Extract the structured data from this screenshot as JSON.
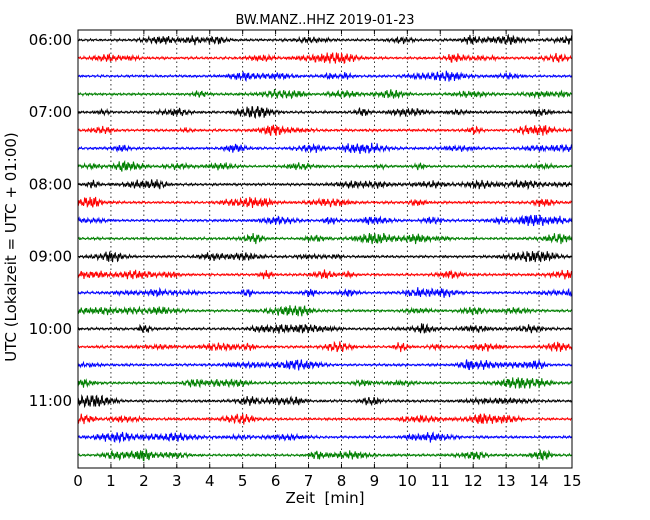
{
  "chart_data": {
    "type": "line",
    "title": "BW.MANZ..HHZ 2019-01-23",
    "xlabel": "Zeit  [min]",
    "ylabel": "UTC (Lokalzeit = UTC + 01:00)",
    "xlim": [
      0,
      15
    ],
    "x_ticks": [
      0,
      1,
      2,
      3,
      4,
      5,
      6,
      7,
      8,
      9,
      10,
      11,
      12,
      13,
      14,
      15
    ],
    "x_tick_labels": [
      "0",
      "1",
      "2",
      "3",
      "4",
      "5",
      "6",
      "7",
      "8",
      "9",
      "10",
      "11",
      "12",
      "13",
      "14",
      "15"
    ],
    "y_tick_labels": [
      "06:00",
      "07:00",
      "08:00",
      "09:00",
      "10:00",
      "11:00"
    ],
    "grid": "vertical dotted",
    "trace_colors": [
      "#000000",
      "#ff0000",
      "#0000ff",
      "#008000"
    ],
    "traces": [
      {
        "label": "06:00",
        "color": "#000000"
      },
      {
        "label": "06:15",
        "color": "#ff0000"
      },
      {
        "label": "06:30",
        "color": "#0000ff"
      },
      {
        "label": "06:45",
        "color": "#008000"
      },
      {
        "label": "07:00",
        "color": "#000000"
      },
      {
        "label": "07:15",
        "color": "#ff0000"
      },
      {
        "label": "07:30",
        "color": "#0000ff"
      },
      {
        "label": "07:45",
        "color": "#008000"
      },
      {
        "label": "08:00",
        "color": "#000000"
      },
      {
        "label": "08:15",
        "color": "#ff0000"
      },
      {
        "label": "08:30",
        "color": "#0000ff"
      },
      {
        "label": "08:45",
        "color": "#008000"
      },
      {
        "label": "09:00",
        "color": "#000000"
      },
      {
        "label": "09:15",
        "color": "#ff0000"
      },
      {
        "label": "09:30",
        "color": "#0000ff"
      },
      {
        "label": "09:45",
        "color": "#008000"
      },
      {
        "label": "10:00",
        "color": "#000000"
      },
      {
        "label": "10:15",
        "color": "#ff0000"
      },
      {
        "label": "10:30",
        "color": "#0000ff"
      },
      {
        "label": "10:45",
        "color": "#008000"
      },
      {
        "label": "11:00",
        "color": "#000000"
      },
      {
        "label": "11:15",
        "color": "#ff0000"
      },
      {
        "label": "11:30",
        "color": "#0000ff"
      },
      {
        "label": "11:45",
        "color": "#008000"
      }
    ]
  }
}
